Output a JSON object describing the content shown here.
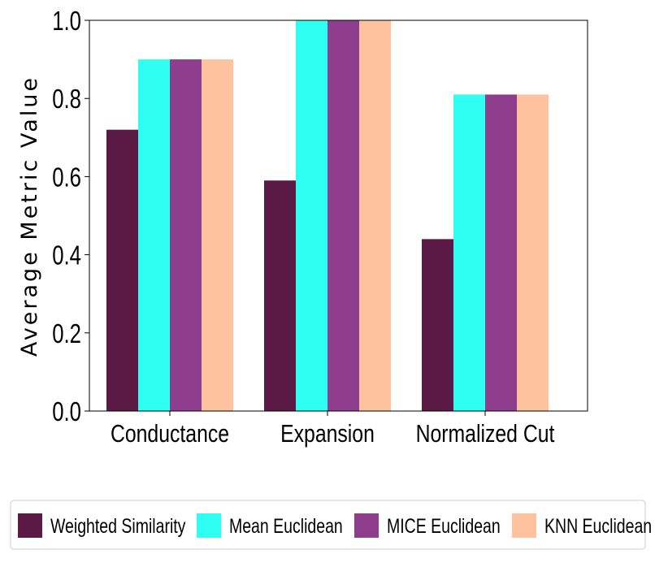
{
  "chart_data": {
    "type": "bar",
    "ylabel": "Average Metric Value",
    "xlabel": "",
    "title": "",
    "ylim": [
      0.0,
      1.0
    ],
    "yticks": [
      "0.0",
      "0.2",
      "0.4",
      "0.6",
      "0.8",
      "1.0"
    ],
    "categories": [
      "Conductance",
      "Expansion",
      "Normalized Cut"
    ],
    "series": [
      {
        "name": "Weighted Similarity",
        "color": "#5b1a46",
        "values": [
          0.72,
          0.59,
          0.44
        ]
      },
      {
        "name": "Mean Euclidean",
        "color": "#2ffff2",
        "values": [
          0.9,
          1.0,
          0.81
        ]
      },
      {
        "name": "MICE Euclidean",
        "color": "#8e3e8c",
        "values": [
          0.9,
          1.0,
          0.81
        ]
      },
      {
        "name": "KNN Euclidean",
        "color": "#ffc29e",
        "values": [
          0.9,
          1.0,
          0.81
        ]
      }
    ],
    "legend_position": "bottom",
    "grid": false
  }
}
